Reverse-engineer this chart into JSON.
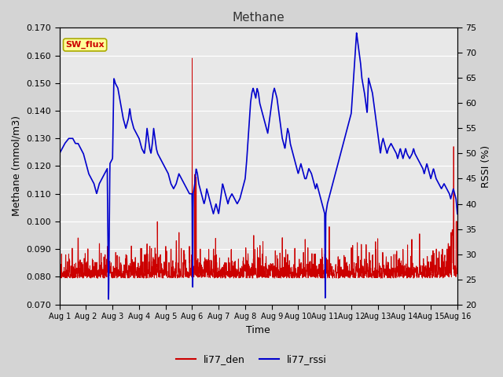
{
  "title": "Methane",
  "xlabel": "Time",
  "ylabel_left": "Methane (mmol/m3)",
  "ylabel_right": "RSSI (%)",
  "ylim_left": [
    0.07,
    0.17
  ],
  "ylim_right": [
    20,
    75
  ],
  "yticks_left": [
    0.07,
    0.08,
    0.09,
    0.1,
    0.11,
    0.12,
    0.13,
    0.14,
    0.15,
    0.16,
    0.17
  ],
  "yticks_right": [
    20,
    25,
    30,
    35,
    40,
    45,
    50,
    55,
    60,
    65,
    70,
    75
  ],
  "xtick_labels": [
    "Aug 1",
    "Aug 2",
    "Aug 3",
    "Aug 4",
    "Aug 5",
    "Aug 6",
    "Aug 7",
    "Aug 8",
    "Aug 9",
    "Aug 10",
    "Aug 11",
    "Aug 12",
    "Aug 13",
    "Aug 14",
    "Aug 15",
    "Aug 16"
  ],
  "color_den": "#cc0000",
  "color_rssi": "#0000cc",
  "annotation_text": "SW_flux",
  "annotation_color": "#cc0000",
  "annotation_bg": "#ffff99",
  "fig_bg_color": "#d4d4d4",
  "plot_bg_color": "#e8e8e8",
  "legend_den": "li77_den",
  "legend_rssi": "li77_rssi",
  "rssi_keypoints": [
    [
      0.0,
      50
    ],
    [
      0.2,
      52
    ],
    [
      0.35,
      53
    ],
    [
      0.5,
      53
    ],
    [
      0.6,
      52
    ],
    [
      0.7,
      52
    ],
    [
      0.8,
      51
    ],
    [
      0.9,
      50
    ],
    [
      1.0,
      48
    ],
    [
      1.1,
      46
    ],
    [
      1.2,
      45
    ],
    [
      1.3,
      44
    ],
    [
      1.35,
      43
    ],
    [
      1.4,
      42
    ],
    [
      1.5,
      44
    ],
    [
      1.6,
      45
    ],
    [
      1.7,
      46
    ],
    [
      1.8,
      47
    ],
    [
      1.85,
      20
    ],
    [
      1.9,
      48
    ],
    [
      2.0,
      49
    ],
    [
      2.05,
      65
    ],
    [
      2.1,
      64
    ],
    [
      2.2,
      63
    ],
    [
      2.3,
      60
    ],
    [
      2.4,
      57
    ],
    [
      2.5,
      55
    ],
    [
      2.6,
      57
    ],
    [
      2.65,
      59
    ],
    [
      2.7,
      57
    ],
    [
      2.8,
      55
    ],
    [
      2.9,
      54
    ],
    [
      3.0,
      53
    ],
    [
      3.05,
      52
    ],
    [
      3.1,
      51
    ],
    [
      3.2,
      50
    ],
    [
      3.25,
      52
    ],
    [
      3.3,
      55
    ],
    [
      3.35,
      53
    ],
    [
      3.4,
      51
    ],
    [
      3.45,
      50
    ],
    [
      3.5,
      52
    ],
    [
      3.55,
      55
    ],
    [
      3.6,
      53
    ],
    [
      3.65,
      51
    ],
    [
      3.7,
      50
    ],
    [
      3.8,
      49
    ],
    [
      3.9,
      48
    ],
    [
      4.0,
      47
    ],
    [
      4.1,
      46
    ],
    [
      4.15,
      45
    ],
    [
      4.2,
      44
    ],
    [
      4.3,
      43
    ],
    [
      4.4,
      44
    ],
    [
      4.5,
      46
    ],
    [
      4.6,
      45
    ],
    [
      4.7,
      44
    ],
    [
      4.8,
      43
    ],
    [
      4.9,
      42
    ],
    [
      5.0,
      42
    ],
    [
      5.02,
      20
    ],
    [
      5.04,
      42
    ],
    [
      5.1,
      44
    ],
    [
      5.15,
      47
    ],
    [
      5.2,
      46
    ],
    [
      5.25,
      44
    ],
    [
      5.3,
      43
    ],
    [
      5.35,
      42
    ],
    [
      5.4,
      41
    ],
    [
      5.45,
      40
    ],
    [
      5.5,
      41
    ],
    [
      5.55,
      43
    ],
    [
      5.6,
      42
    ],
    [
      5.65,
      41
    ],
    [
      5.7,
      40
    ],
    [
      5.75,
      39
    ],
    [
      5.8,
      38
    ],
    [
      5.85,
      39
    ],
    [
      5.9,
      40
    ],
    [
      5.95,
      39
    ],
    [
      6.0,
      38
    ],
    [
      6.05,
      40
    ],
    [
      6.1,
      42
    ],
    [
      6.15,
      44
    ],
    [
      6.2,
      43
    ],
    [
      6.25,
      42
    ],
    [
      6.3,
      41
    ],
    [
      6.35,
      40
    ],
    [
      6.4,
      41
    ],
    [
      6.5,
      42
    ],
    [
      6.6,
      41
    ],
    [
      6.7,
      40
    ],
    [
      6.8,
      41
    ],
    [
      6.9,
      43
    ],
    [
      7.0,
      45
    ],
    [
      7.05,
      48
    ],
    [
      7.1,
      52
    ],
    [
      7.15,
      56
    ],
    [
      7.2,
      60
    ],
    [
      7.25,
      62
    ],
    [
      7.3,
      63
    ],
    [
      7.35,
      62
    ],
    [
      7.4,
      61
    ],
    [
      7.45,
      63
    ],
    [
      7.5,
      62
    ],
    [
      7.55,
      60
    ],
    [
      7.6,
      59
    ],
    [
      7.65,
      58
    ],
    [
      7.7,
      57
    ],
    [
      7.75,
      56
    ],
    [
      7.8,
      55
    ],
    [
      7.85,
      54
    ],
    [
      7.9,
      56
    ],
    [
      7.95,
      58
    ],
    [
      8.0,
      60
    ],
    [
      8.05,
      62
    ],
    [
      8.1,
      63
    ],
    [
      8.15,
      62
    ],
    [
      8.2,
      61
    ],
    [
      8.25,
      59
    ],
    [
      8.3,
      57
    ],
    [
      8.35,
      55
    ],
    [
      8.4,
      53
    ],
    [
      8.45,
      52
    ],
    [
      8.5,
      51
    ],
    [
      8.55,
      53
    ],
    [
      8.6,
      55
    ],
    [
      8.65,
      54
    ],
    [
      8.7,
      52
    ],
    [
      8.75,
      51
    ],
    [
      8.8,
      50
    ],
    [
      8.85,
      49
    ],
    [
      8.9,
      48
    ],
    [
      8.95,
      47
    ],
    [
      9.0,
      46
    ],
    [
      9.05,
      47
    ],
    [
      9.1,
      48
    ],
    [
      9.15,
      47
    ],
    [
      9.2,
      46
    ],
    [
      9.25,
      45
    ],
    [
      9.3,
      45
    ],
    [
      9.35,
      46
    ],
    [
      9.4,
      47
    ],
    [
      9.5,
      46
    ],
    [
      9.55,
      45
    ],
    [
      9.6,
      44
    ],
    [
      9.65,
      43
    ],
    [
      9.7,
      44
    ],
    [
      9.75,
      43
    ],
    [
      9.8,
      42
    ],
    [
      9.85,
      41
    ],
    [
      9.9,
      40
    ],
    [
      9.95,
      39
    ],
    [
      10.0,
      38
    ],
    [
      10.02,
      20
    ],
    [
      10.04,
      38
    ],
    [
      10.1,
      40
    ],
    [
      10.2,
      42
    ],
    [
      10.3,
      44
    ],
    [
      10.4,
      46
    ],
    [
      10.5,
      48
    ],
    [
      10.6,
      50
    ],
    [
      10.7,
      52
    ],
    [
      10.8,
      54
    ],
    [
      10.9,
      56
    ],
    [
      11.0,
      58
    ],
    [
      11.05,
      62
    ],
    [
      11.1,
      66
    ],
    [
      11.15,
      70
    ],
    [
      11.2,
      74
    ],
    [
      11.25,
      72
    ],
    [
      11.3,
      70
    ],
    [
      11.35,
      68
    ],
    [
      11.4,
      65
    ],
    [
      11.5,
      62
    ],
    [
      11.6,
      58
    ],
    [
      11.65,
      65
    ],
    [
      11.7,
      64
    ],
    [
      11.75,
      63
    ],
    [
      11.8,
      62
    ],
    [
      11.85,
      60
    ],
    [
      11.9,
      58
    ],
    [
      11.95,
      56
    ],
    [
      12.0,
      54
    ],
    [
      12.05,
      52
    ],
    [
      12.1,
      50
    ],
    [
      12.15,
      52
    ],
    [
      12.2,
      53
    ],
    [
      12.25,
      52
    ],
    [
      12.3,
      51
    ],
    [
      12.35,
      50
    ],
    [
      12.4,
      51
    ],
    [
      12.5,
      52
    ],
    [
      12.6,
      51
    ],
    [
      12.7,
      50
    ],
    [
      12.75,
      49
    ],
    [
      12.8,
      50
    ],
    [
      12.85,
      51
    ],
    [
      12.9,
      50
    ],
    [
      12.95,
      49
    ],
    [
      13.0,
      50
    ],
    [
      13.05,
      51
    ],
    [
      13.1,
      50
    ],
    [
      13.2,
      49
    ],
    [
      13.3,
      50
    ],
    [
      13.35,
      51
    ],
    [
      13.4,
      50
    ],
    [
      13.5,
      49
    ],
    [
      13.6,
      48
    ],
    [
      13.7,
      47
    ],
    [
      13.75,
      46
    ],
    [
      13.8,
      47
    ],
    [
      13.85,
      48
    ],
    [
      13.9,
      47
    ],
    [
      13.95,
      46
    ],
    [
      14.0,
      45
    ],
    [
      14.05,
      46
    ],
    [
      14.1,
      47
    ],
    [
      14.15,
      46
    ],
    [
      14.2,
      45
    ],
    [
      14.3,
      44
    ],
    [
      14.4,
      43
    ],
    [
      14.5,
      44
    ],
    [
      14.6,
      43
    ],
    [
      14.7,
      42
    ],
    [
      14.75,
      41
    ],
    [
      14.8,
      42
    ],
    [
      14.85,
      43
    ],
    [
      14.9,
      42
    ],
    [
      14.95,
      41
    ],
    [
      15.0,
      38
    ]
  ]
}
